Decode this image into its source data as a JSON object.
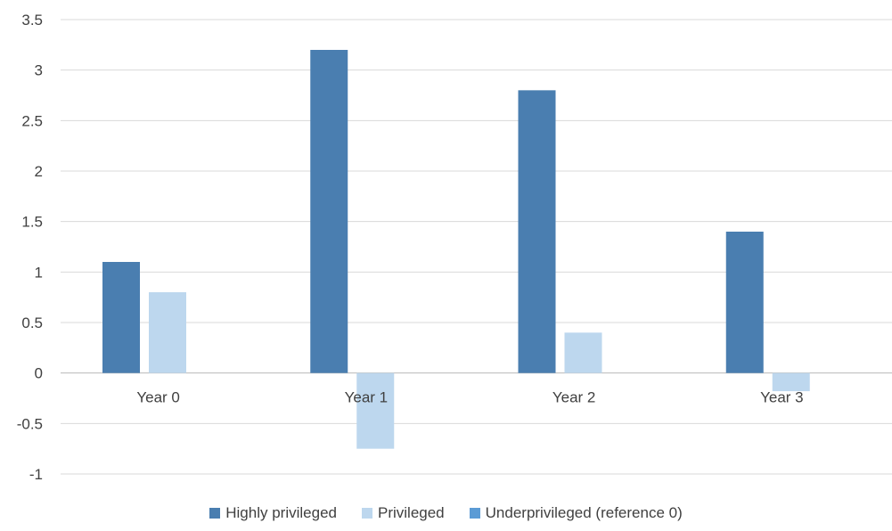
{
  "chart_data": {
    "type": "bar",
    "categories": [
      "Year 0",
      "Year 1",
      "Year 2",
      "Year 3"
    ],
    "series": [
      {
        "name": "Highly privileged",
        "values": [
          1.1,
          3.2,
          2.8,
          1.4
        ],
        "color": "#4a7eb0"
      },
      {
        "name": "Privileged",
        "values": [
          0.8,
          -0.75,
          0.4,
          -0.18
        ],
        "color": "#bdd7ee"
      },
      {
        "name": "Underprivileged (reference 0)",
        "values": [
          0,
          0,
          0,
          0
        ],
        "color": "#5b9bd5"
      }
    ],
    "ylim": [
      -1,
      3.5
    ],
    "yticks": [
      "3.5",
      "3",
      "2.5",
      "2",
      "1.5",
      "1",
      "0.5",
      "0",
      "-0.5",
      "-1"
    ],
    "grid": true,
    "legend_position": "bottom"
  }
}
